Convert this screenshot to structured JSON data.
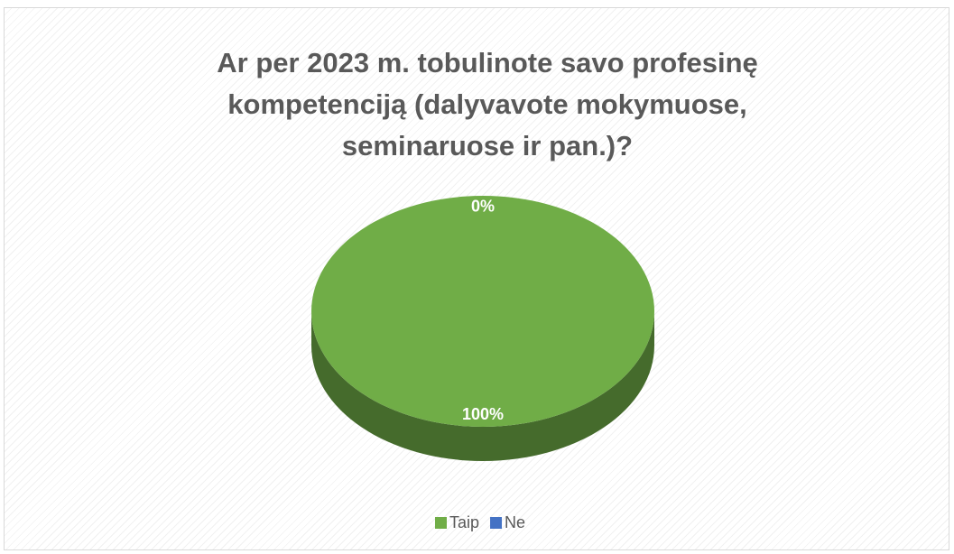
{
  "chart_data": {
    "type": "pie",
    "title": "Ar per 2023 m. tobulinote savo profesinę kompetenciją (dalyvavote mokymuose, seminaruose ir pan.)?",
    "categories": [
      "Taip",
      "Ne"
    ],
    "values": [
      100,
      0
    ],
    "value_labels": [
      "100%",
      "0%"
    ],
    "colors": [
      "#70ad47",
      "#4472c4"
    ],
    "legend": "bottom"
  }
}
